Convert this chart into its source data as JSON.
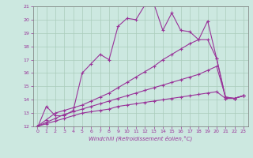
{
  "title": "",
  "xlabel": "Windchill (Refroidissement éolien,°C)",
  "ylabel": "",
  "bg_color": "#cce8e0",
  "line_color": "#993399",
  "marker": "+",
  "markersize": 3,
  "linewidth": 0.8,
  "xlim": [
    -0.5,
    23.5
  ],
  "ylim": [
    12,
    21
  ],
  "xticks": [
    0,
    1,
    2,
    3,
    4,
    5,
    6,
    7,
    8,
    9,
    10,
    11,
    12,
    13,
    14,
    15,
    16,
    17,
    18,
    19,
    20,
    21,
    22,
    23
  ],
  "yticks": [
    12,
    13,
    14,
    15,
    16,
    17,
    18,
    19,
    20,
    21
  ],
  "grid_color": "#aaccbb",
  "line1_x": [
    0,
    1,
    2,
    3,
    4,
    5,
    6,
    7,
    8,
    9,
    10,
    11,
    12,
    13,
    14,
    15,
    16,
    17,
    18,
    19,
    20,
    21,
    22,
    23
  ],
  "line1_y": [
    11.9,
    13.5,
    12.8,
    12.8,
    13.2,
    16.0,
    16.7,
    17.4,
    17.0,
    19.5,
    20.1,
    20.0,
    21.1,
    21.2,
    19.2,
    20.5,
    19.2,
    19.1,
    18.5,
    19.9,
    17.1,
    14.1,
    14.1,
    14.3
  ],
  "line2_x": [
    0,
    1,
    2,
    3,
    4,
    5,
    6,
    7,
    8,
    9,
    10,
    11,
    12,
    13,
    14,
    15,
    16,
    17,
    18,
    19,
    20,
    21,
    22,
    23
  ],
  "line2_y": [
    12.0,
    12.5,
    13.0,
    13.2,
    13.4,
    13.6,
    13.9,
    14.2,
    14.5,
    14.9,
    15.3,
    15.7,
    16.1,
    16.5,
    17.0,
    17.4,
    17.8,
    18.2,
    18.5,
    18.5,
    17.1,
    14.2,
    14.1,
    14.3
  ],
  "line3_x": [
    0,
    1,
    2,
    3,
    4,
    5,
    6,
    7,
    8,
    9,
    10,
    11,
    12,
    13,
    14,
    15,
    16,
    17,
    18,
    19,
    20,
    21,
    22,
    23
  ],
  "line3_y": [
    12.0,
    12.3,
    12.6,
    12.9,
    13.1,
    13.3,
    13.5,
    13.7,
    13.9,
    14.1,
    14.3,
    14.5,
    14.7,
    14.9,
    15.1,
    15.3,
    15.5,
    15.7,
    15.9,
    16.2,
    16.5,
    14.2,
    14.1,
    14.3
  ],
  "line4_x": [
    0,
    1,
    2,
    3,
    4,
    5,
    6,
    7,
    8,
    9,
    10,
    11,
    12,
    13,
    14,
    15,
    16,
    17,
    18,
    19,
    20,
    21,
    22,
    23
  ],
  "line4_y": [
    12.0,
    12.2,
    12.4,
    12.6,
    12.8,
    13.0,
    13.1,
    13.2,
    13.3,
    13.5,
    13.6,
    13.7,
    13.8,
    13.9,
    14.0,
    14.1,
    14.2,
    14.3,
    14.4,
    14.5,
    14.6,
    14.1,
    14.1,
    14.3
  ]
}
